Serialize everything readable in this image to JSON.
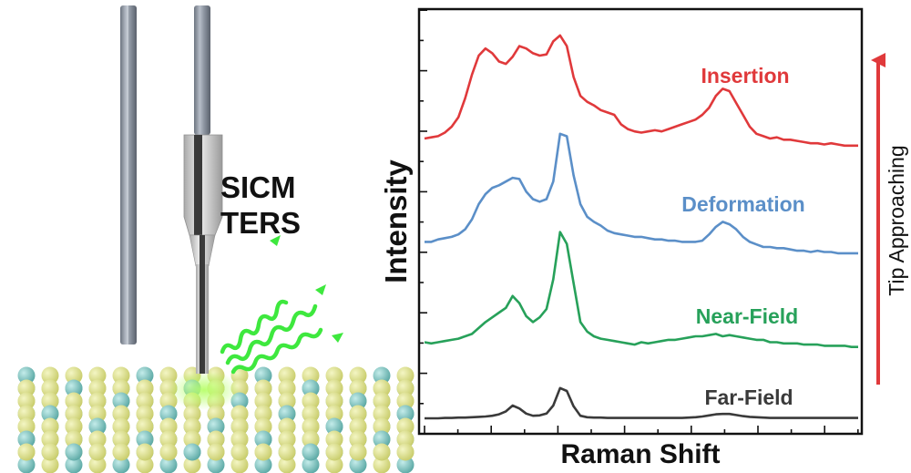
{
  "schematic": {
    "technique_line1": "SICM",
    "technique_line2": "TERS"
  },
  "colors": {
    "insertion": "#e0393b",
    "deformation": "#5b8fc8",
    "near_field": "#27a15a",
    "far_field": "#3a3a3a",
    "arrow": "#e0393b",
    "waves": "#3ee83e",
    "atom_yellow": "#d8dc84",
    "atom_teal": "#7cc0bc"
  },
  "chart_data": {
    "type": "line",
    "xlabel": "Raman Shift",
    "ylabel": "Intensity",
    "arrow_label": "Tip Approaching",
    "x": [
      0,
      1,
      2,
      3,
      4,
      5,
      6,
      7,
      8,
      9,
      10,
      11,
      12,
      13,
      14,
      15,
      16,
      17,
      18,
      19,
      20,
      21,
      22,
      23,
      24,
      25,
      26,
      27,
      28,
      29,
      30,
      31,
      32,
      33,
      34,
      35,
      36,
      37,
      38,
      39,
      40,
      41,
      42,
      43,
      44,
      45,
      46,
      47,
      48,
      49,
      50,
      51,
      52,
      53,
      54,
      55,
      56,
      57,
      58,
      59,
      60,
      61,
      62,
      63,
      64
    ],
    "series": [
      {
        "name": "Insertion",
        "color_key": "insertion",
        "values": [
          0.1,
          0.11,
          0.12,
          0.15,
          0.2,
          0.28,
          0.44,
          0.64,
          0.8,
          0.86,
          0.82,
          0.75,
          0.73,
          0.79,
          0.88,
          0.86,
          0.82,
          0.8,
          0.81,
          0.92,
          0.97,
          0.88,
          0.62,
          0.46,
          0.41,
          0.38,
          0.34,
          0.32,
          0.3,
          0.22,
          0.18,
          0.16,
          0.15,
          0.16,
          0.17,
          0.16,
          0.18,
          0.2,
          0.22,
          0.24,
          0.26,
          0.3,
          0.36,
          0.46,
          0.52,
          0.5,
          0.4,
          0.3,
          0.2,
          0.14,
          0.12,
          0.1,
          0.11,
          0.09,
          0.09,
          0.08,
          0.07,
          0.06,
          0.06,
          0.05,
          0.06,
          0.05,
          0.04,
          0.04,
          0.04
        ]
      },
      {
        "name": "Deformation",
        "color_key": "deformation",
        "values": [
          0.12,
          0.12,
          0.14,
          0.15,
          0.16,
          0.18,
          0.22,
          0.3,
          0.42,
          0.5,
          0.55,
          0.57,
          0.6,
          0.63,
          0.62,
          0.52,
          0.46,
          0.44,
          0.46,
          0.6,
          0.98,
          0.96,
          0.65,
          0.42,
          0.32,
          0.28,
          0.25,
          0.21,
          0.19,
          0.18,
          0.17,
          0.16,
          0.16,
          0.15,
          0.14,
          0.14,
          0.13,
          0.13,
          0.12,
          0.12,
          0.12,
          0.13,
          0.18,
          0.24,
          0.28,
          0.26,
          0.22,
          0.16,
          0.12,
          0.1,
          0.08,
          0.08,
          0.07,
          0.07,
          0.06,
          0.05,
          0.05,
          0.04,
          0.05,
          0.04,
          0.04,
          0.03,
          0.03,
          0.03,
          0.03
        ]
      },
      {
        "name": "Near-Field",
        "color_key": "near_field",
        "values": [
          0.05,
          0.04,
          0.05,
          0.06,
          0.07,
          0.08,
          0.1,
          0.12,
          0.17,
          0.22,
          0.26,
          0.3,
          0.34,
          0.44,
          0.38,
          0.27,
          0.22,
          0.26,
          0.33,
          0.58,
          0.98,
          0.88,
          0.55,
          0.22,
          0.14,
          0.1,
          0.08,
          0.07,
          0.06,
          0.05,
          0.04,
          0.03,
          0.05,
          0.04,
          0.05,
          0.06,
          0.07,
          0.07,
          0.08,
          0.09,
          0.1,
          0.1,
          0.11,
          0.12,
          0.1,
          0.11,
          0.1,
          0.09,
          0.08,
          0.07,
          0.07,
          0.05,
          0.05,
          0.04,
          0.04,
          0.04,
          0.03,
          0.03,
          0.03,
          0.02,
          0.02,
          0.02,
          0.02,
          0.01,
          0.01
        ]
      },
      {
        "name": "Far-Field",
        "color_key": "far_field",
        "values": [
          0.05,
          0.05,
          0.05,
          0.06,
          0.06,
          0.07,
          0.07,
          0.08,
          0.09,
          0.1,
          0.12,
          0.16,
          0.24,
          0.4,
          0.32,
          0.18,
          0.12,
          0.13,
          0.18,
          0.4,
          0.88,
          0.8,
          0.38,
          0.12,
          0.08,
          0.07,
          0.07,
          0.06,
          0.06,
          0.06,
          0.06,
          0.06,
          0.06,
          0.06,
          0.06,
          0.06,
          0.06,
          0.06,
          0.06,
          0.07,
          0.08,
          0.1,
          0.13,
          0.16,
          0.17,
          0.17,
          0.14,
          0.11,
          0.09,
          0.08,
          0.07,
          0.06,
          0.06,
          0.06,
          0.06,
          0.06,
          0.06,
          0.06,
          0.06,
          0.06,
          0.06,
          0.06,
          0.06,
          0.06,
          0.06
        ]
      }
    ]
  }
}
